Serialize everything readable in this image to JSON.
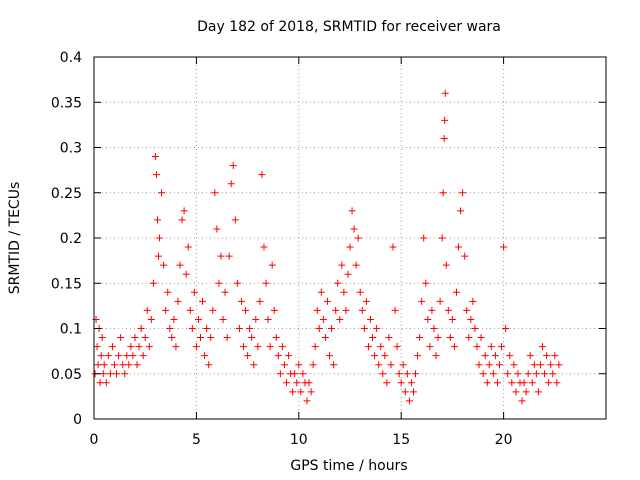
{
  "chart_data": {
    "type": "scatter",
    "title": "Day 182 of 2018, SRMTID for receiver wara",
    "xlabel": "GPS time / hours",
    "ylabel": "SRMTID / TECUs",
    "xlim": [
      0,
      25
    ],
    "ylim": [
      0,
      0.4
    ],
    "x_ticks": [
      0,
      5,
      10,
      15,
      20
    ],
    "x_tick_labels": [
      "0",
      "5",
      "10",
      "15",
      "20"
    ],
    "y_ticks": [
      0,
      0.05,
      0.1,
      0.15,
      0.2,
      0.25,
      0.3,
      0.35,
      0.4
    ],
    "y_tick_labels": [
      "0",
      "0.05",
      "0.1",
      "0.15",
      "0.2",
      "0.25",
      "0.3",
      "0.35",
      "0.4"
    ],
    "grid": true,
    "marker": "plus",
    "color": "#ff0000",
    "series": [
      {
        "name": "SRMTID",
        "points": [
          [
            0.05,
            0.05
          ],
          [
            0.1,
            0.11
          ],
          [
            0.15,
            0.08
          ],
          [
            0.2,
            0.06
          ],
          [
            0.25,
            0.1
          ],
          [
            0.3,
            0.04
          ],
          [
            0.35,
            0.07
          ],
          [
            0.4,
            0.09
          ],
          [
            0.45,
            0.05
          ],
          [
            0.5,
            0.06
          ],
          [
            0.6,
            0.04
          ],
          [
            0.7,
            0.07
          ],
          [
            0.8,
            0.05
          ],
          [
            0.9,
            0.08
          ],
          [
            1.0,
            0.06
          ],
          [
            1.1,
            0.05
          ],
          [
            1.2,
            0.07
          ],
          [
            1.3,
            0.09
          ],
          [
            1.4,
            0.06
          ],
          [
            1.5,
            0.05
          ],
          [
            1.6,
            0.07
          ],
          [
            1.7,
            0.06
          ],
          [
            1.8,
            0.08
          ],
          [
            1.9,
            0.07
          ],
          [
            2.0,
            0.09
          ],
          [
            2.1,
            0.06
          ],
          [
            2.2,
            0.08
          ],
          [
            2.3,
            0.1
          ],
          [
            2.4,
            0.07
          ],
          [
            2.5,
            0.09
          ],
          [
            2.6,
            0.12
          ],
          [
            2.7,
            0.08
          ],
          [
            2.8,
            0.11
          ],
          [
            2.9,
            0.15
          ],
          [
            3.0,
            0.29
          ],
          [
            3.05,
            0.27
          ],
          [
            3.1,
            0.22
          ],
          [
            3.15,
            0.18
          ],
          [
            3.2,
            0.2
          ],
          [
            3.3,
            0.25
          ],
          [
            3.4,
            0.17
          ],
          [
            3.5,
            0.12
          ],
          [
            3.6,
            0.14
          ],
          [
            3.7,
            0.1
          ],
          [
            3.8,
            0.09
          ],
          [
            3.9,
            0.11
          ],
          [
            4.0,
            0.08
          ],
          [
            4.1,
            0.13
          ],
          [
            4.2,
            0.17
          ],
          [
            4.3,
            0.22
          ],
          [
            4.4,
            0.23
          ],
          [
            4.5,
            0.16
          ],
          [
            4.6,
            0.19
          ],
          [
            4.7,
            0.12
          ],
          [
            4.8,
            0.1
          ],
          [
            4.9,
            0.14
          ],
          [
            5.0,
            0.08
          ],
          [
            5.1,
            0.11
          ],
          [
            5.2,
            0.09
          ],
          [
            5.3,
            0.13
          ],
          [
            5.4,
            0.07
          ],
          [
            5.5,
            0.1
          ],
          [
            5.6,
            0.06
          ],
          [
            5.7,
            0.09
          ],
          [
            5.8,
            0.12
          ],
          [
            5.9,
            0.25
          ],
          [
            6.0,
            0.21
          ],
          [
            6.1,
            0.15
          ],
          [
            6.2,
            0.18
          ],
          [
            6.3,
            0.11
          ],
          [
            6.4,
            0.14
          ],
          [
            6.5,
            0.09
          ],
          [
            6.6,
            0.18
          ],
          [
            6.7,
            0.26
          ],
          [
            6.8,
            0.28
          ],
          [
            6.9,
            0.22
          ],
          [
            7.0,
            0.15
          ],
          [
            7.1,
            0.1
          ],
          [
            7.2,
            0.13
          ],
          [
            7.3,
            0.08
          ],
          [
            7.4,
            0.12
          ],
          [
            7.5,
            0.07
          ],
          [
            7.6,
            0.1
          ],
          [
            7.7,
            0.09
          ],
          [
            7.8,
            0.06
          ],
          [
            7.9,
            0.11
          ],
          [
            8.0,
            0.08
          ],
          [
            8.1,
            0.13
          ],
          [
            8.2,
            0.27
          ],
          [
            8.3,
            0.19
          ],
          [
            8.4,
            0.15
          ],
          [
            8.5,
            0.11
          ],
          [
            8.6,
            0.08
          ],
          [
            8.7,
            0.17
          ],
          [
            8.8,
            0.12
          ],
          [
            8.9,
            0.09
          ],
          [
            9.0,
            0.07
          ],
          [
            9.1,
            0.05
          ],
          [
            9.2,
            0.08
          ],
          [
            9.3,
            0.06
          ],
          [
            9.4,
            0.04
          ],
          [
            9.5,
            0.07
          ],
          [
            9.6,
            0.05
          ],
          [
            9.7,
            0.03
          ],
          [
            9.8,
            0.05
          ],
          [
            9.9,
            0.04
          ],
          [
            10.0,
            0.06
          ],
          [
            10.1,
            0.03
          ],
          [
            10.2,
            0.05
          ],
          [
            10.3,
            0.04
          ],
          [
            10.4,
            0.02
          ],
          [
            10.5,
            0.04
          ],
          [
            10.6,
            0.03
          ],
          [
            10.7,
            0.06
          ],
          [
            10.8,
            0.08
          ],
          [
            10.9,
            0.12
          ],
          [
            11.0,
            0.1
          ],
          [
            11.1,
            0.14
          ],
          [
            11.2,
            0.11
          ],
          [
            11.3,
            0.09
          ],
          [
            11.4,
            0.13
          ],
          [
            11.5,
            0.07
          ],
          [
            11.6,
            0.1
          ],
          [
            11.7,
            0.06
          ],
          [
            11.8,
            0.12
          ],
          [
            11.9,
            0.15
          ],
          [
            12.0,
            0.11
          ],
          [
            12.1,
            0.17
          ],
          [
            12.2,
            0.14
          ],
          [
            12.3,
            0.12
          ],
          [
            12.4,
            0.16
          ],
          [
            12.5,
            0.19
          ],
          [
            12.6,
            0.23
          ],
          [
            12.7,
            0.21
          ],
          [
            12.8,
            0.17
          ],
          [
            12.9,
            0.2
          ],
          [
            13.0,
            0.14
          ],
          [
            13.1,
            0.12
          ],
          [
            13.2,
            0.1
          ],
          [
            13.3,
            0.13
          ],
          [
            13.4,
            0.08
          ],
          [
            13.5,
            0.11
          ],
          [
            13.6,
            0.09
          ],
          [
            13.7,
            0.07
          ],
          [
            13.8,
            0.1
          ],
          [
            13.9,
            0.06
          ],
          [
            14.0,
            0.08
          ],
          [
            14.1,
            0.05
          ],
          [
            14.2,
            0.07
          ],
          [
            14.3,
            0.04
          ],
          [
            14.4,
            0.09
          ],
          [
            14.5,
            0.06
          ],
          [
            14.6,
            0.19
          ],
          [
            14.7,
            0.12
          ],
          [
            14.8,
            0.08
          ],
          [
            14.9,
            0.05
          ],
          [
            15.0,
            0.04
          ],
          [
            15.1,
            0.06
          ],
          [
            15.2,
            0.03
          ],
          [
            15.3,
            0.05
          ],
          [
            15.4,
            0.02
          ],
          [
            15.5,
            0.04
          ],
          [
            15.6,
            0.03
          ],
          [
            15.7,
            0.05
          ],
          [
            15.8,
            0.07
          ],
          [
            15.9,
            0.09
          ],
          [
            16.0,
            0.13
          ],
          [
            16.1,
            0.2
          ],
          [
            16.2,
            0.15
          ],
          [
            16.3,
            0.11
          ],
          [
            16.4,
            0.08
          ],
          [
            16.5,
            0.12
          ],
          [
            16.6,
            0.1
          ],
          [
            16.7,
            0.07
          ],
          [
            16.8,
            0.09
          ],
          [
            16.9,
            0.13
          ],
          [
            17.0,
            0.2
          ],
          [
            17.05,
            0.25
          ],
          [
            17.1,
            0.31
          ],
          [
            17.12,
            0.33
          ],
          [
            17.15,
            0.36
          ],
          [
            17.2,
            0.17
          ],
          [
            17.3,
            0.12
          ],
          [
            17.4,
            0.09
          ],
          [
            17.5,
            0.11
          ],
          [
            17.6,
            0.08
          ],
          [
            17.7,
            0.14
          ],
          [
            17.8,
            0.19
          ],
          [
            17.9,
            0.23
          ],
          [
            18.0,
            0.25
          ],
          [
            18.1,
            0.18
          ],
          [
            18.2,
            0.12
          ],
          [
            18.3,
            0.09
          ],
          [
            18.4,
            0.11
          ],
          [
            18.5,
            0.13
          ],
          [
            18.6,
            0.1
          ],
          [
            18.7,
            0.08
          ],
          [
            18.8,
            0.06
          ],
          [
            18.9,
            0.09
          ],
          [
            19.0,
            0.05
          ],
          [
            19.1,
            0.07
          ],
          [
            19.2,
            0.04
          ],
          [
            19.3,
            0.06
          ],
          [
            19.4,
            0.08
          ],
          [
            19.5,
            0.05
          ],
          [
            19.6,
            0.07
          ],
          [
            19.7,
            0.04
          ],
          [
            19.8,
            0.06
          ],
          [
            19.9,
            0.08
          ],
          [
            20.0,
            0.19
          ],
          [
            20.1,
            0.1
          ],
          [
            20.2,
            0.05
          ],
          [
            20.3,
            0.07
          ],
          [
            20.4,
            0.04
          ],
          [
            20.5,
            0.06
          ],
          [
            20.6,
            0.03
          ],
          [
            20.7,
            0.05
          ],
          [
            20.8,
            0.04
          ],
          [
            20.9,
            0.02
          ],
          [
            21.0,
            0.04
          ],
          [
            21.1,
            0.03
          ],
          [
            21.2,
            0.05
          ],
          [
            21.3,
            0.07
          ],
          [
            21.4,
            0.04
          ],
          [
            21.5,
            0.06
          ],
          [
            21.6,
            0.05
          ],
          [
            21.7,
            0.03
          ],
          [
            21.8,
            0.06
          ],
          [
            21.9,
            0.08
          ],
          [
            22.0,
            0.05
          ],
          [
            22.1,
            0.07
          ],
          [
            22.2,
            0.04
          ],
          [
            22.3,
            0.06
          ],
          [
            22.4,
            0.05
          ],
          [
            22.5,
            0.07
          ],
          [
            22.6,
            0.04
          ],
          [
            22.7,
            0.06
          ]
        ]
      }
    ]
  }
}
